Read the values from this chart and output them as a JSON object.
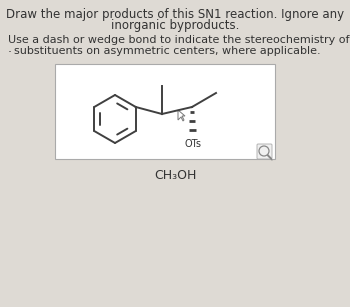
{
  "title_line1": "Draw the major products of this SN1 reaction. Ignore any",
  "title_line2": "inorganic byproducts.",
  "subtitle_line1": "Use a dash or wedge bond to indicate the stereochemistry of",
  "subtitle_line2": "substituents on asymmetric centers, where applicable.",
  "reagent": "CH₃OH",
  "background_color": "#dedad4",
  "box_color": "#f5f5f5",
  "text_color": "#333333",
  "bond_color": "#404040",
  "font_size_title": 8.5,
  "font_size_sub": 8.0,
  "font_size_reagent": 9.0,
  "font_size_ots": 7.0
}
